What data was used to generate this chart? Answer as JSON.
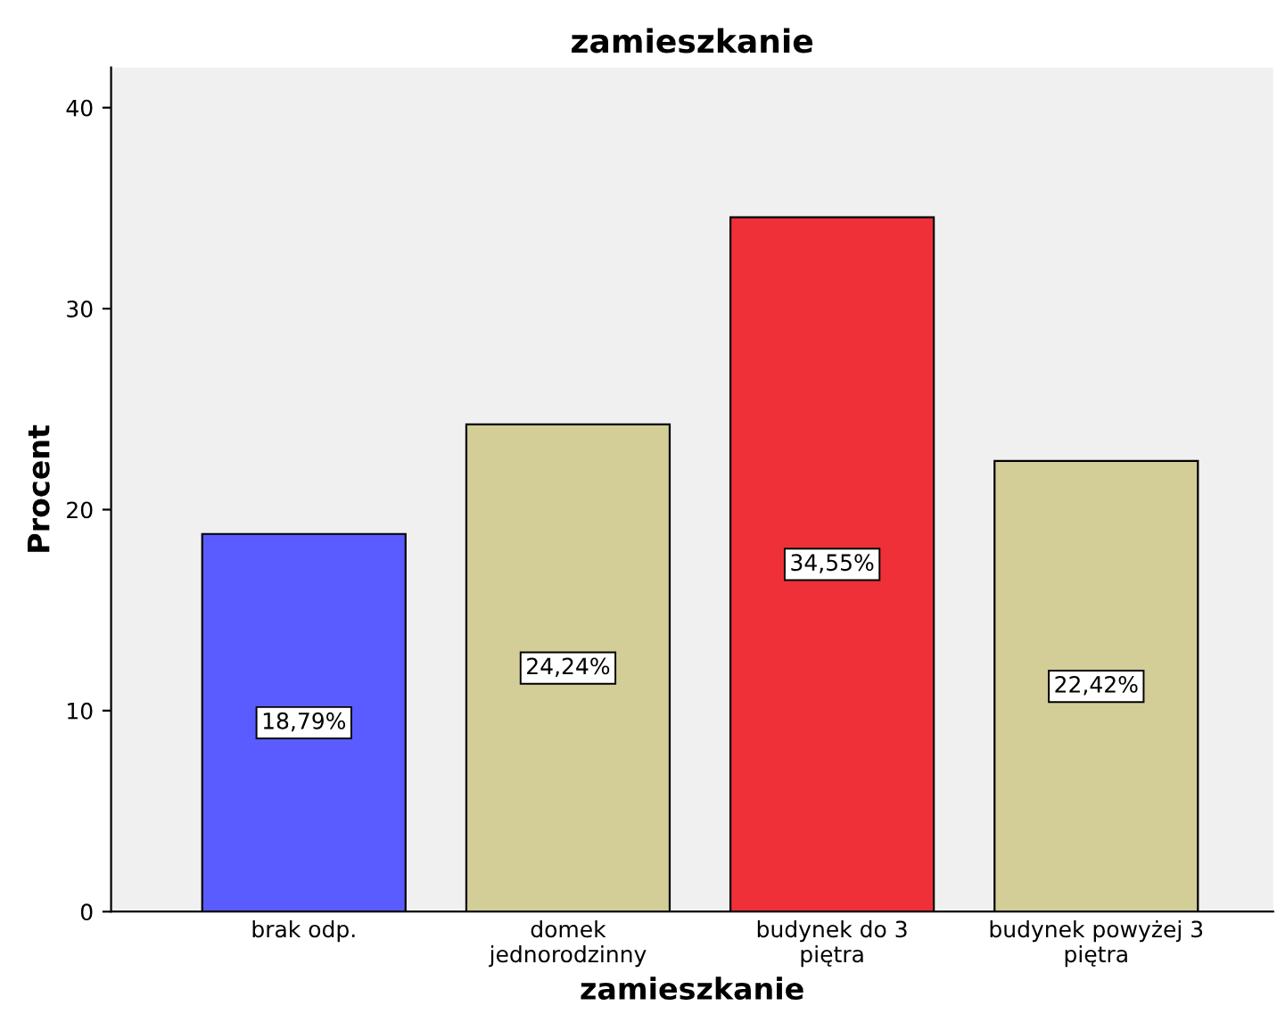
{
  "chart_data": {
    "type": "bar",
    "title": "zamieszkanie",
    "xlabel": "zamieszkanie",
    "ylabel": "Procent",
    "categories": [
      "brak odp.",
      "domek jednorodzinny",
      "budynek do 3 piętra",
      "budynek powyżej 3 piętra"
    ],
    "values": [
      18.79,
      24.24,
      34.55,
      22.42
    ],
    "colors": [
      "#5a5cff",
      "#d3cd98",
      "#ef3038",
      "#d3cd98"
    ],
    "value_labels": [
      "18,79%",
      "24,24%",
      "34,55%",
      "22,42%"
    ],
    "ylim": [
      0,
      42
    ],
    "yticks": [
      0,
      10,
      20,
      30,
      40
    ],
    "grid": false,
    "legend": false
  }
}
